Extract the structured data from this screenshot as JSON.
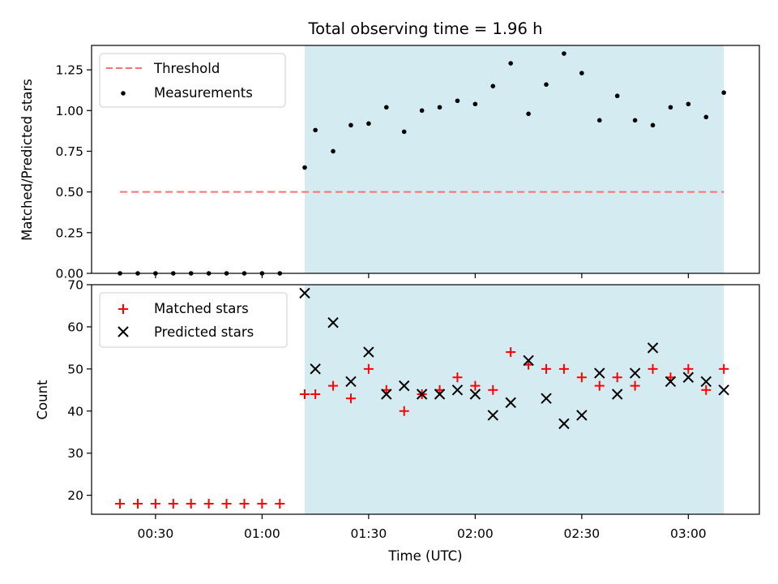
{
  "chart_data": [
    {
      "type": "scatter",
      "title": "Total observing time = 1.96 h",
      "xlabel": "",
      "ylabel": "Matched/Predicted stars",
      "ylim": [
        0,
        1.4
      ],
      "yticks": [
        "0.00",
        "0.25",
        "0.50",
        "0.75",
        "1.00",
        "1.25"
      ],
      "legend_position": "top-left",
      "shaded_span": {
        "start": "01:12",
        "end": "03:10",
        "color": "#add8e6"
      },
      "threshold": {
        "name": "Threshold",
        "value": 0.5,
        "from": "00:20",
        "to": "03:10",
        "color": "#ff7070"
      },
      "series": [
        {
          "name": "Measurements",
          "color": "#000000",
          "marker": "dot",
          "x": [
            "00:20",
            "00:25",
            "00:30",
            "00:35",
            "00:40",
            "00:45",
            "00:50",
            "00:55",
            "01:00",
            "01:05",
            "01:12",
            "01:15",
            "01:20",
            "01:25",
            "01:30",
            "01:35",
            "01:40",
            "01:45",
            "01:50",
            "01:55",
            "02:00",
            "02:05",
            "02:10",
            "02:15",
            "02:20",
            "02:25",
            "02:30",
            "02:35",
            "02:40",
            "02:45",
            "02:50",
            "02:55",
            "03:00",
            "03:05",
            "03:10"
          ],
          "y": [
            0,
            0,
            0,
            0,
            0,
            0,
            0,
            0,
            0,
            0,
            0.65,
            0.88,
            0.75,
            0.91,
            0.92,
            1.02,
            0.87,
            1.0,
            1.02,
            1.06,
            1.04,
            1.15,
            1.29,
            0.98,
            1.16,
            1.35,
            1.23,
            0.94,
            1.09,
            0.94,
            0.91,
            1.02,
            1.04,
            0.96,
            1.11
          ]
        }
      ]
    },
    {
      "type": "scatter",
      "title": "",
      "xlabel": "Time (UTC)",
      "ylabel": "Count",
      "xlim": [
        "00:12",
        "03:20"
      ],
      "xticks": [
        "00:30",
        "01:00",
        "01:30",
        "02:00",
        "02:30",
        "03:00"
      ],
      "ylim": [
        15.5,
        70
      ],
      "yticks": [
        "20",
        "30",
        "40",
        "50",
        "60",
        "70"
      ],
      "legend_position": "top-left",
      "shaded_span": {
        "start": "01:12",
        "end": "03:10",
        "color": "#add8e6"
      },
      "series": [
        {
          "name": "Matched stars",
          "color": "#ff0000",
          "marker": "plus",
          "x": [
            "00:20",
            "00:25",
            "00:30",
            "00:35",
            "00:40",
            "00:45",
            "00:50",
            "00:55",
            "01:00",
            "01:05",
            "01:12",
            "01:15",
            "01:20",
            "01:25",
            "01:30",
            "01:35",
            "01:40",
            "01:45",
            "01:50",
            "01:55",
            "02:00",
            "02:05",
            "02:10",
            "02:15",
            "02:20",
            "02:25",
            "02:30",
            "02:35",
            "02:40",
            "02:45",
            "02:50",
            "02:55",
            "03:00",
            "03:05",
            "03:10"
          ],
          "y": [
            18,
            18,
            18,
            18,
            18,
            18,
            18,
            18,
            18,
            18,
            44,
            44,
            46,
            43,
            50,
            45,
            40,
            44,
            45,
            48,
            46,
            45,
            54,
            51,
            50,
            50,
            48,
            46,
            48,
            46,
            50,
            48,
            50,
            45,
            50
          ]
        },
        {
          "name": "Predicted stars",
          "color": "#000000",
          "marker": "cross",
          "x": [
            "01:12",
            "01:15",
            "01:20",
            "01:25",
            "01:30",
            "01:35",
            "01:40",
            "01:45",
            "01:50",
            "01:55",
            "02:00",
            "02:05",
            "02:10",
            "02:15",
            "02:20",
            "02:25",
            "02:30",
            "02:35",
            "02:40",
            "02:45",
            "02:50",
            "02:55",
            "03:00",
            "03:05",
            "03:10"
          ],
          "y": [
            68,
            50,
            61,
            47,
            54,
            44,
            46,
            44,
            44,
            45,
            44,
            39,
            42,
            52,
            43,
            37,
            39,
            49,
            44,
            49,
            55,
            47,
            48,
            47,
            45
          ]
        }
      ]
    }
  ]
}
